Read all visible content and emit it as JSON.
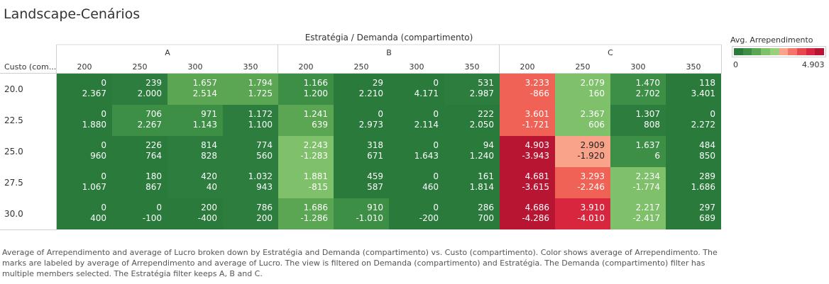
{
  "title": "Landscape-Cenários",
  "column_header": "Estratégia / Demanda (compartimento)",
  "row_header": "Custo (com...",
  "legend": {
    "title": "Avg. Arrependimento",
    "min": "0",
    "max": "4.903",
    "swatches": [
      "#2a7a3c",
      "#3d8f46",
      "#5aa653",
      "#7fc06b",
      "#9bd07a",
      "#f9a48a",
      "#f4756a",
      "#e9474d",
      "#d9263f",
      "#b81533"
    ]
  },
  "caption": "Average of Arrependimento and average of Lucro broken down by Estratégia and Demanda (compartimento) vs. Custo (compartimento).  Color shows average of Arrependimento. The marks are labeled by average of Arrependimento and average of Lucro. The view is filtered on Demanda (compartimento) and Estratégia. The Demanda (compartimento) filter has multiple members selected. The Estratégia filter keeps A, B and C.",
  "chart_data": {
    "type": "heatmap",
    "color_measure": "Avg. Arrependimento",
    "color_range": [
      0,
      4903
    ],
    "strategies": [
      "A",
      "B",
      "C"
    ],
    "demand_labels": [
      "200",
      "250",
      "300",
      "350"
    ],
    "rows": [
      "20.0",
      "22.5",
      "25.0",
      "27.5",
      "30.0"
    ],
    "columns": [
      {
        "strategy": "A",
        "demand": "200"
      },
      {
        "strategy": "A",
        "demand": "250"
      },
      {
        "strategy": "A",
        "demand": "300"
      },
      {
        "strategy": "A",
        "demand": "350"
      },
      {
        "strategy": "B",
        "demand": "200"
      },
      {
        "strategy": "B",
        "demand": "250"
      },
      {
        "strategy": "B",
        "demand": "300"
      },
      {
        "strategy": "B",
        "demand": "350"
      },
      {
        "strategy": "C",
        "demand": "200"
      },
      {
        "strategy": "C",
        "demand": "250"
      },
      {
        "strategy": "C",
        "demand": "300"
      },
      {
        "strategy": "C",
        "demand": "350"
      }
    ],
    "arrependimento": [
      [
        0,
        239,
        1657,
        1794,
        1166,
        29,
        0,
        531,
        3233,
        2079,
        1470,
        118
      ],
      [
        0,
        706,
        971,
        1172,
        1241,
        0,
        0,
        222,
        3601,
        2367,
        1307,
        0
      ],
      [
        0,
        226,
        814,
        774,
        2243,
        318,
        0,
        94,
        4903,
        2909,
        1637,
        484
      ],
      [
        0,
        180,
        420,
        1032,
        1881,
        459,
        0,
        161,
        4681,
        3293,
        2234,
        289
      ],
      [
        0,
        0,
        200,
        786,
        1686,
        910,
        0,
        286,
        4686,
        3910,
        2217,
        297
      ]
    ],
    "lucro": [
      [
        2367,
        2000,
        2514,
        1725,
        1200,
        2210,
        4171,
        2987,
        -866,
        160,
        2702,
        3401
      ],
      [
        1880,
        2267,
        1143,
        1100,
        639,
        2973,
        2114,
        2050,
        -1721,
        606,
        808,
        2272
      ],
      [
        960,
        764,
        828,
        560,
        -1283,
        671,
        1643,
        1240,
        -3943,
        -1920,
        6,
        850
      ],
      [
        1067,
        867,
        40,
        943,
        -815,
        587,
        460,
        1814,
        -3615,
        -2246,
        -1774,
        1686
      ],
      [
        400,
        -100,
        -400,
        200,
        -1286,
        -1010,
        -200,
        700,
        -4286,
        -4010,
        -2417,
        689
      ]
    ],
    "cell_colors": [
      [
        "#2a7a3c",
        "#2d7d3e",
        "#5aa653",
        "#5aa653",
        "#3d8f46",
        "#2a7a3c",
        "#2a7a3c",
        "#2d7d3e",
        "#f06256",
        "#7fc06b",
        "#3d8f46",
        "#2a7a3c"
      ],
      [
        "#2a7a3c",
        "#3d8f46",
        "#3d8f46",
        "#2d7d3e",
        "#5aa653",
        "#2a7a3c",
        "#2a7a3c",
        "#2a7a3c",
        "#f06256",
        "#7fc06b",
        "#2d7d3e",
        "#2a7a3c"
      ],
      [
        "#2a7a3c",
        "#2a7a3c",
        "#2d7d3e",
        "#2d7d3e",
        "#7fc06b",
        "#2a7a3c",
        "#2a7a3c",
        "#2a7a3c",
        "#b81533",
        "#f9a48a",
        "#3d8f46",
        "#2a7a3c"
      ],
      [
        "#2a7a3c",
        "#2a7a3c",
        "#2d7d3e",
        "#2d7d3e",
        "#7fc06b",
        "#2a7a3c",
        "#2a7a3c",
        "#2a7a3c",
        "#b81533",
        "#f06256",
        "#7fc06b",
        "#2a7a3c"
      ],
      [
        "#2a7a3c",
        "#2a7a3c",
        "#2a7a3c",
        "#2d7d3e",
        "#5aa653",
        "#3d8f46",
        "#2a7a3c",
        "#2a7a3c",
        "#b81533",
        "#d9263f",
        "#7fc06b",
        "#2a7a3c"
      ]
    ]
  }
}
